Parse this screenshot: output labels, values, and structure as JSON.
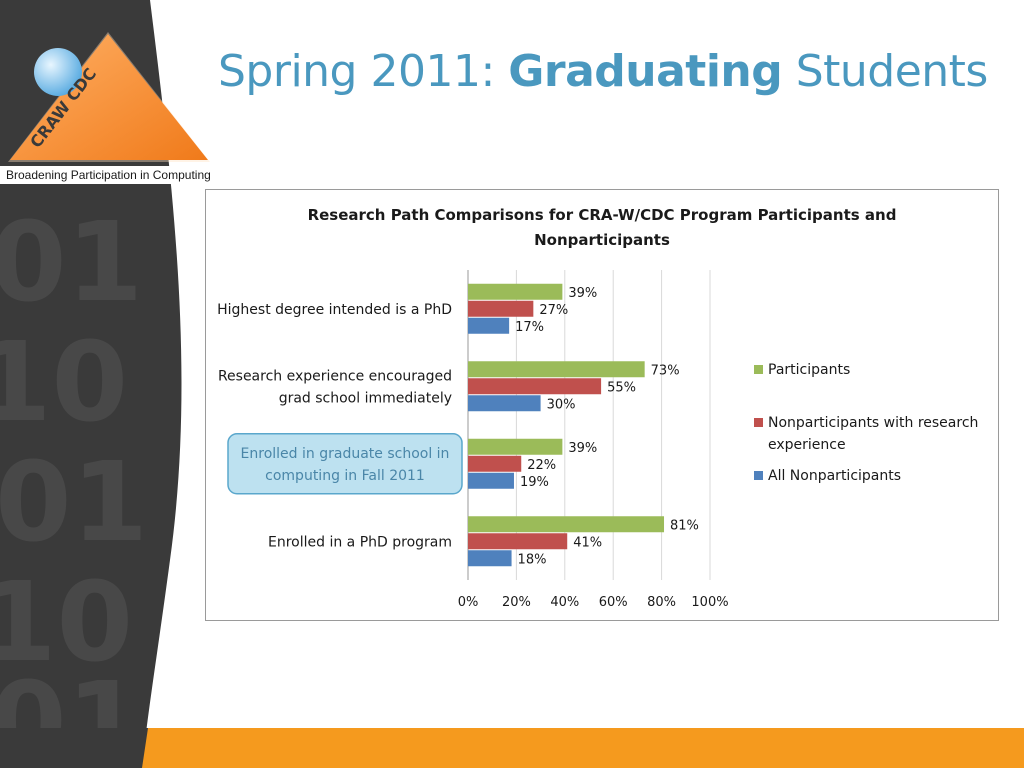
{
  "slide": {
    "title_prefix": "Spring 2011: ",
    "title_bold": "Graduating",
    "title_suffix": " Students"
  },
  "logo": {
    "text": "CRAW  CDC",
    "tagline": "Broadening Participation in Computing"
  },
  "colors": {
    "accent_orange": "#f59a1e",
    "title_blue": "#4a98bf",
    "dark_band": "#3a3a3a"
  },
  "chart_data": {
    "type": "bar",
    "orientation": "horizontal",
    "title": "Research Path Comparisons for CRA-W/CDC Program Participants and Nonparticipants",
    "title_lines": [
      "Research Path Comparisons for CRA-W/CDC Program Participants and",
      "Nonparticipants"
    ],
    "categories": [
      "Highest degree intended is a PhD",
      "Research experience encouraged grad school immediately",
      "Enrolled in graduate school in computing in Fall 2011",
      "Enrolled in a PhD program"
    ],
    "category_lines": [
      [
        "Highest degree intended is a PhD"
      ],
      [
        "Research experience encouraged",
        "grad school immediately"
      ],
      [
        "Enrolled in graduate school in",
        "computing in Fall 2011"
      ],
      [
        "Enrolled in a PhD program"
      ]
    ],
    "highlighted_category": 2,
    "series": [
      {
        "name": "Participants",
        "color": "#9bbb59",
        "values": [
          39,
          73,
          39,
          81
        ]
      },
      {
        "name": "Nonparticipants with research experience",
        "color": "#c0504d",
        "values": [
          27,
          55,
          22,
          41
        ]
      },
      {
        "name": "All Nonparticipants",
        "color": "#4f81bd",
        "values": [
          17,
          30,
          19,
          18
        ]
      }
    ],
    "value_format": "percent",
    "xlim": [
      0,
      100
    ],
    "xticks": [
      "0%",
      "20%",
      "40%",
      "60%",
      "80%",
      "100%"
    ],
    "grid": true,
    "legend_position": "right",
    "legend_lines": [
      [
        "Participants"
      ],
      [
        "Nonparticipants with research",
        "experience"
      ],
      [
        "All Nonparticipants"
      ]
    ]
  }
}
